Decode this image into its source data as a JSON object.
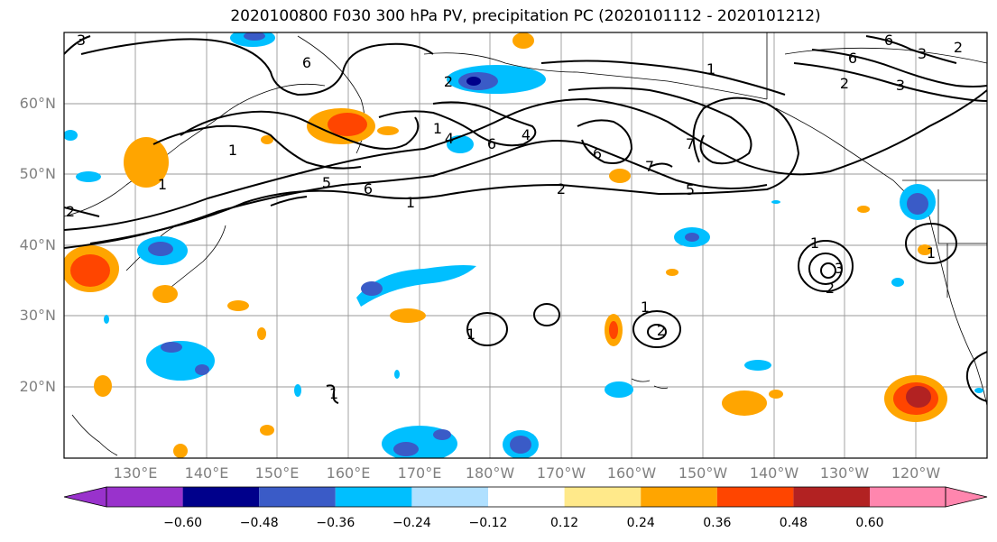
{
  "title": "2020100800 F030 300 hPa PV, precipitation PC (2020101112 - 2020101212)",
  "lat_labels": [
    "60°N",
    "50°N",
    "40°N",
    "30°N",
    "20°N"
  ],
  "lon_labels": [
    "130°E",
    "140°E",
    "150°E",
    "160°E",
    "170°E",
    "180°W",
    "170°W",
    "160°W",
    "150°W",
    "140°W",
    "130°W",
    "120°W"
  ],
  "colorbar": {
    "ticks": [
      "−0.60",
      "−0.48",
      "−0.36",
      "−0.24",
      "−0.12",
      "0.12",
      "0.24",
      "0.36",
      "0.48",
      "0.60"
    ],
    "colors": [
      "#9932cc",
      "#00008b",
      "#3a5bc7",
      "#00bfff",
      "#b0e0ff",
      "#ffffff",
      "#ffe98a",
      "#ffa500",
      "#ff4500",
      "#b22222",
      "#ff86ae"
    ]
  },
  "contour_labels": [
    "3",
    "2",
    "1",
    "6",
    "5",
    "4",
    "1",
    "2",
    "6",
    "4",
    "7",
    "6",
    "7",
    "5",
    "2",
    "6",
    "3",
    "1",
    "1",
    "2",
    "1",
    "1",
    "2",
    "1",
    "1",
    "2",
    "1",
    "3",
    "2",
    "6",
    "3",
    "1",
    "6"
  ]
}
